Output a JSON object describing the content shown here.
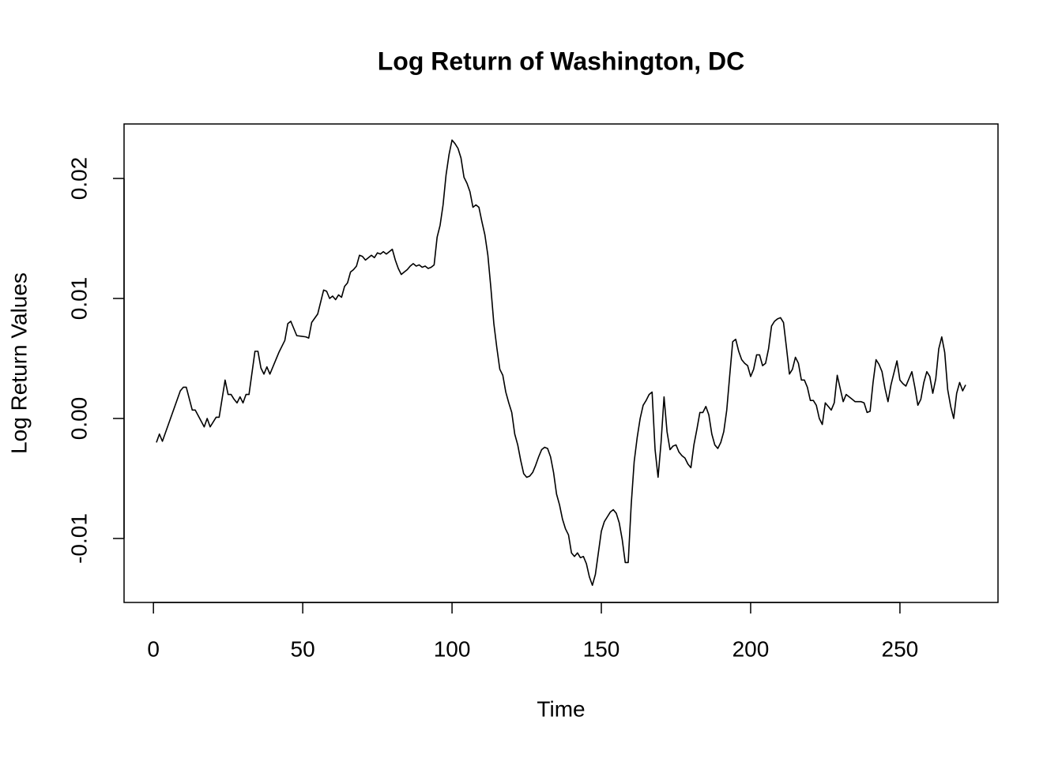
{
  "chart_data": {
    "type": "line",
    "title": "Log Return of Washington, DC",
    "x_label": "Time",
    "y_label": "Log Return Values",
    "x": [
      1,
      2,
      3,
      9,
      10,
      11,
      13,
      14,
      17,
      18,
      19,
      21,
      22,
      24,
      25,
      26,
      27,
      28,
      29,
      30,
      31,
      32,
      33,
      34,
      35,
      36,
      37,
      38,
      39,
      42,
      44,
      45,
      46,
      48,
      51,
      52,
      53,
      55,
      57,
      58,
      59,
      60,
      61,
      62,
      63,
      64,
      65,
      66,
      67,
      68,
      69,
      70,
      71,
      72,
      73,
      74,
      75,
      76,
      77,
      78,
      79,
      80,
      81,
      82,
      83,
      84,
      85,
      86,
      87,
      88,
      89,
      90,
      91,
      92,
      93,
      94,
      95,
      96,
      97,
      98,
      99,
      100,
      101,
      102,
      103,
      104,
      105,
      106,
      107,
      108,
      109,
      110,
      111,
      112,
      113,
      114,
      115,
      116,
      117,
      118,
      119,
      120,
      121,
      122,
      123,
      124,
      125,
      126,
      127,
      128,
      129,
      130,
      131,
      132,
      133,
      134,
      135,
      136,
      137,
      138,
      139,
      140,
      141,
      142,
      143,
      144,
      145,
      146,
      147,
      148,
      149,
      150,
      151,
      152,
      153,
      154,
      155,
      156,
      157,
      158,
      159,
      160,
      161,
      162,
      163,
      164,
      165,
      166,
      167,
      168,
      169,
      170,
      171,
      172,
      173,
      174,
      175,
      176,
      177,
      178,
      179,
      180,
      181,
      182,
      183,
      184,
      185,
      186,
      187,
      188,
      189,
      190,
      191,
      192,
      193,
      194,
      195,
      196,
      197,
      198,
      199,
      200,
      201,
      202,
      203,
      204,
      205,
      206,
      207,
      208,
      209,
      210,
      211,
      212,
      213,
      214,
      215,
      216,
      217,
      218,
      219,
      220,
      221,
      222,
      223,
      224,
      225,
      226,
      227,
      228,
      229,
      230,
      231,
      232,
      233,
      234,
      235,
      236,
      237,
      238,
      239,
      240,
      241,
      242,
      243,
      244,
      245,
      246,
      247,
      248,
      249,
      250,
      251,
      252,
      253,
      254,
      255,
      256,
      257,
      258,
      259,
      260,
      261,
      262,
      263,
      264,
      265,
      266,
      267,
      268,
      269,
      270,
      271,
      272
    ],
    "values": [
      -0.002,
      -0.0013,
      -0.0019,
      0.0023,
      0.0026,
      0.0026,
      0.0007,
      0.0007,
      -0.0007,
      0.0,
      -0.0007,
      0.0001,
      0.0001,
      0.0032,
      0.002,
      0.002,
      0.0016,
      0.0013,
      0.0018,
      0.0013,
      0.002,
      0.002,
      0.0038,
      0.0056,
      0.0056,
      0.0042,
      0.0037,
      0.0043,
      0.0037,
      0.0055,
      0.0065,
      0.0079,
      0.0081,
      0.0069,
      0.0068,
      0.0067,
      0.008,
      0.0087,
      0.0107,
      0.0106,
      0.01,
      0.0102,
      0.0099,
      0.0103,
      0.0101,
      0.011,
      0.0113,
      0.0122,
      0.0124,
      0.0127,
      0.0136,
      0.0135,
      0.0132,
      0.0134,
      0.0136,
      0.0134,
      0.0138,
      0.0137,
      0.0139,
      0.0137,
      0.0139,
      0.0141,
      0.0132,
      0.0125,
      0.012,
      0.0122,
      0.0124,
      0.0127,
      0.0129,
      0.0127,
      0.0128,
      0.0126,
      0.0127,
      0.0125,
      0.0126,
      0.0128,
      0.0151,
      0.0161,
      0.0178,
      0.0203,
      0.022,
      0.0232,
      0.0229,
      0.0225,
      0.0217,
      0.0201,
      0.0196,
      0.0189,
      0.0176,
      0.0178,
      0.0176,
      0.0164,
      0.0153,
      0.0136,
      0.0109,
      0.0079,
      0.0059,
      0.0041,
      0.0036,
      0.0022,
      0.0013,
      0.0005,
      -0.0013,
      -0.0022,
      -0.0035,
      -0.0046,
      -0.0049,
      -0.0048,
      -0.0045,
      -0.0039,
      -0.0032,
      -0.0026,
      -0.0024,
      -0.0025,
      -0.0032,
      -0.0045,
      -0.0063,
      -0.0072,
      -0.0084,
      -0.0092,
      -0.0097,
      -0.0112,
      -0.0115,
      -0.0112,
      -0.0116,
      -0.0115,
      -0.0121,
      -0.0132,
      -0.0139,
      -0.013,
      -0.0112,
      -0.0094,
      -0.0086,
      -0.0082,
      -0.0078,
      -0.0076,
      -0.0079,
      -0.0087,
      -0.0101,
      -0.012,
      -0.012,
      -0.0072,
      -0.0036,
      -0.0016,
      0.0,
      0.0011,
      0.0015,
      0.002,
      0.0022,
      -0.0026,
      -0.0049,
      -0.002,
      0.0018,
      -0.0011,
      -0.0026,
      -0.0023,
      -0.0022,
      -0.0028,
      -0.0031,
      -0.0033,
      -0.0038,
      -0.0041,
      -0.0022,
      -0.0009,
      0.0005,
      0.0005,
      0.001,
      0.0003,
      -0.0013,
      -0.0022,
      -0.0025,
      -0.002,
      -0.0011,
      0.0007,
      0.0036,
      0.0064,
      0.0066,
      0.0056,
      0.0049,
      0.0046,
      0.0044,
      0.0035,
      0.0041,
      0.0053,
      0.0053,
      0.0044,
      0.0046,
      0.0058,
      0.0077,
      0.0081,
      0.0083,
      0.0084,
      0.008,
      0.0059,
      0.0037,
      0.0041,
      0.0051,
      0.0046,
      0.0032,
      0.0032,
      0.0026,
      0.0015,
      0.0015,
      0.0011,
      0.0,
      -0.0005,
      0.0013,
      0.001,
      0.0007,
      0.0013,
      0.0036,
      0.0025,
      0.0014,
      0.002,
      0.0018,
      0.0016,
      0.0014,
      0.0014,
      0.0014,
      0.0013,
      0.0005,
      0.0006,
      0.003,
      0.0049,
      0.0045,
      0.0039,
      0.0025,
      0.0014,
      0.0028,
      0.0038,
      0.0048,
      0.0032,
      0.0029,
      0.0027,
      0.0033,
      0.0039,
      0.0026,
      0.0011,
      0.0016,
      0.003,
      0.0039,
      0.0035,
      0.0021,
      0.0033,
      0.0058,
      0.0068,
      0.0055,
      0.0024,
      0.001,
      0.0,
      0.0021,
      0.003,
      0.0023,
      0.0028
    ],
    "color": "#000000",
    "xlim": [
      -9.84,
      282.84
    ],
    "ylim": [
      -0.01533,
      0.02454
    ],
    "xticks": [
      0,
      50,
      100,
      150,
      200,
      250
    ],
    "yticks": [
      -0.01,
      {
        "value": 0,
        "label": "0.00"
      },
      0.01,
      0.02
    ]
  }
}
